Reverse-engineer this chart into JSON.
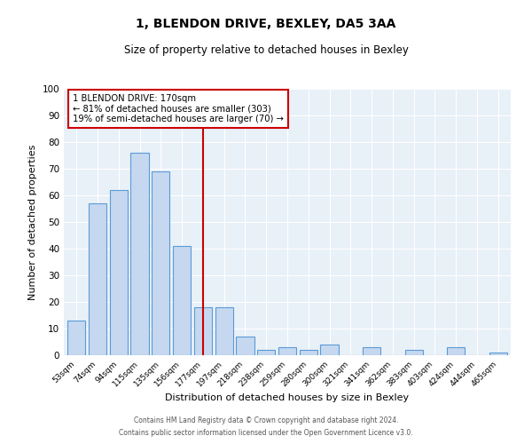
{
  "title": "1, BLENDON DRIVE, BEXLEY, DA5 3AA",
  "subtitle": "Size of property relative to detached houses in Bexley",
  "xlabel": "Distribution of detached houses by size in Bexley",
  "ylabel": "Number of detached properties",
  "bar_labels": [
    "53sqm",
    "74sqm",
    "94sqm",
    "115sqm",
    "135sqm",
    "156sqm",
    "177sqm",
    "197sqm",
    "218sqm",
    "238sqm",
    "259sqm",
    "280sqm",
    "300sqm",
    "321sqm",
    "341sqm",
    "362sqm",
    "383sqm",
    "403sqm",
    "424sqm",
    "444sqm",
    "465sqm"
  ],
  "bar_heights": [
    13,
    57,
    62,
    76,
    69,
    41,
    18,
    18,
    7,
    2,
    3,
    2,
    4,
    0,
    3,
    0,
    2,
    0,
    3,
    0,
    1
  ],
  "bar_color": "#c5d8f0",
  "bar_edge_color": "#5b9bd5",
  "vline_x": 6,
  "vline_color": "#cc0000",
  "annotation_title": "1 BLENDON DRIVE: 170sqm",
  "annotation_line1": "← 81% of detached houses are smaller (303)",
  "annotation_line2": "19% of semi-detached houses are larger (70) →",
  "annotation_box_color": "#ffffff",
  "annotation_box_edge": "#cc0000",
  "ylim": [
    0,
    100
  ],
  "yticks": [
    0,
    10,
    20,
    30,
    40,
    50,
    60,
    70,
    80,
    90,
    100
  ],
  "footer1": "Contains HM Land Registry data © Crown copyright and database right 2024.",
  "footer2": "Contains public sector information licensed under the Open Government Licence v3.0.",
  "bg_color": "#e8f0f8",
  "fig_bg_color": "#ffffff"
}
